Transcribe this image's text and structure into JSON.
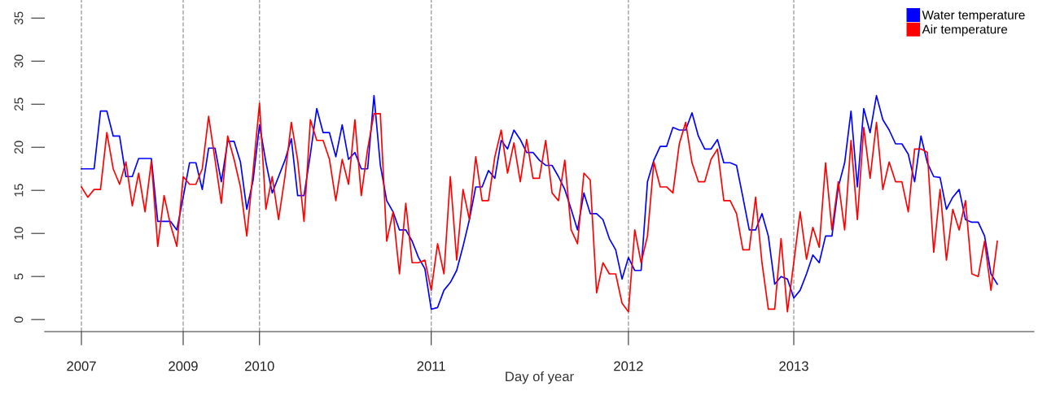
{
  "chart_data": {
    "type": "line",
    "xlabel": "Day of year",
    "categories": [
      "2007",
      null,
      null,
      null,
      null,
      null,
      null,
      null,
      null,
      null,
      null,
      null,
      null,
      null,
      null,
      null,
      "2009",
      null,
      null,
      null,
      null,
      null,
      null,
      null,
      null,
      null,
      null,
      null,
      "2010",
      null,
      null,
      null,
      null,
      null,
      null,
      null,
      null,
      null,
      null,
      null,
      null,
      null,
      null,
      null,
      null,
      null,
      null,
      null,
      null,
      null,
      null,
      null,
      null,
      null,
      null,
      "2011",
      null,
      null,
      null,
      null,
      null,
      null,
      null,
      null,
      null,
      null,
      null,
      null,
      null,
      null,
      null,
      null,
      null,
      null,
      null,
      null,
      null,
      null,
      null,
      null,
      null,
      null,
      null,
      null,
      null,
      null,
      "2012",
      null,
      null,
      null,
      null,
      null,
      null,
      null,
      null,
      null,
      null,
      null,
      null,
      null,
      null,
      null,
      null,
      null,
      null,
      null,
      null,
      null,
      null,
      null,
      null,
      null,
      "2013",
      null,
      null,
      null,
      null,
      null,
      null,
      null,
      null,
      null,
      null,
      null,
      null,
      null,
      null,
      null,
      null,
      null,
      null,
      null,
      null,
      null,
      null,
      null,
      null,
      null,
      null,
      null,
      null,
      null,
      null,
      null,
      null
    ],
    "ylim": [
      -1.4,
      37.1
    ],
    "yticks": [
      0,
      5,
      10,
      15,
      20,
      25,
      30,
      35
    ],
    "grid": "x",
    "legend": "top right",
    "marker": "none",
    "line_style": "solid",
    "series": [
      {
        "name": "Water temperature",
        "color": "#0000ff",
        "values": [
          17.5,
          17.5,
          17.5,
          24.2,
          24.2,
          21.3,
          21.3,
          16.6,
          16.6,
          18.7,
          18.7,
          18.7,
          11.4,
          11.4,
          11.4,
          10.4,
          14.2,
          18.2,
          18.2,
          15.1,
          19.9,
          19.9,
          16,
          20.7,
          20.7,
          18.3,
          12.8,
          16.2,
          22.6,
          18.3,
          14.7,
          16.6,
          18.5,
          21,
          14.4,
          14.4,
          19.2,
          24.5,
          21.7,
          21.7,
          18.9,
          22.6,
          18.6,
          19.4,
          17.5,
          17.5,
          26,
          17.9,
          13.8,
          12.5,
          10.4,
          10.4,
          9.1,
          7.2,
          5.9,
          1.2,
          1.4,
          3.4,
          4.3,
          5.7,
          8.5,
          11.6,
          15.4,
          15.4,
          17.3,
          16.4,
          20.8,
          19.8,
          22,
          20.9,
          19.4,
          19.4,
          18.5,
          17.9,
          17.9,
          16.6,
          15.1,
          12.8,
          10.4,
          14.7,
          12.3,
          12.3,
          11.6,
          9.4,
          8.1,
          4.7,
          7.2,
          5.7,
          5.7,
          16,
          18.5,
          20.1,
          20.1,
          22.3,
          22,
          22,
          24,
          21.3,
          19.8,
          19.8,
          20.9,
          18.2,
          18.2,
          17.9,
          14.2,
          10.4,
          10.4,
          12.3,
          9.7,
          4.1,
          5,
          4.7,
          2.5,
          3.4,
          5.3,
          7.5,
          6.6,
          9.7,
          9.7,
          15.4,
          18.2,
          24.2,
          15.4,
          24.5,
          21.7,
          26,
          23.2,
          22,
          20.4,
          20.4,
          19.2,
          16,
          21.3,
          18.2,
          16.6,
          16.5,
          12.8,
          14.2,
          15.1,
          11.6,
          11.3,
          11.3,
          9.7,
          5.3,
          4.1
        ]
      },
      {
        "name": "Air temperature",
        "color": "#ff0000",
        "values": [
          15.4,
          14.2,
          15.1,
          15.1,
          21.7,
          17.5,
          15.7,
          18.3,
          13.2,
          17,
          12.5,
          18.4,
          8.5,
          14.4,
          11,
          8.5,
          16.6,
          15.7,
          15.7,
          17.5,
          23.6,
          18.6,
          13.5,
          21.3,
          18.6,
          15.4,
          9.7,
          17.3,
          25.1,
          12.8,
          16.6,
          11.6,
          16.6,
          22.9,
          18.5,
          11.4,
          23.2,
          20.8,
          20.8,
          18.6,
          13.8,
          18.6,
          15.7,
          23.2,
          14.4,
          19.8,
          23.9,
          23.9,
          9.1,
          12.5,
          5.3,
          13.5,
          6.6,
          6.6,
          6.9,
          3.4,
          8.8,
          5.3,
          16.6,
          6.9,
          15.1,
          11.6,
          18.9,
          13.8,
          13.8,
          18.9,
          22,
          17,
          20.5,
          16,
          20.9,
          16.4,
          16.4,
          20.8,
          14.7,
          13.8,
          18.5,
          10.4,
          8.8,
          17,
          16.2,
          3.1,
          6.6,
          5.3,
          5.3,
          1.9,
          0.9,
          10.4,
          6.6,
          9.7,
          18.3,
          15.4,
          15.4,
          14.7,
          20.4,
          22.9,
          18.2,
          16,
          16,
          18.6,
          19.8,
          13.8,
          13.8,
          12.3,
          8.1,
          8.1,
          14.2,
          6.6,
          1.2,
          1.2,
          9.4,
          0.9,
          6.6,
          12.5,
          7,
          10.7,
          8.4,
          18.2,
          10.4,
          16,
          10.4,
          20.8,
          11.6,
          22.3,
          16.4,
          22.9,
          15.1,
          18.3,
          16,
          16,
          12.5,
          19.8,
          19.8,
          19.4,
          7.8,
          15.1,
          6.9,
          12.8,
          10.4,
          13.8,
          5.3,
          5,
          9.1,
          3.4,
          9.1
        ]
      }
    ]
  }
}
